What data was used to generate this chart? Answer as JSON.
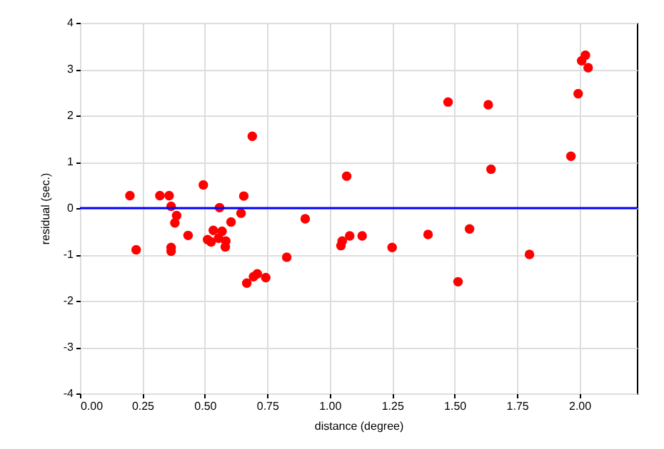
{
  "chart_data": {
    "type": "scatter",
    "xlabel": "distance (degree)",
    "ylabel": "residual (sec.)",
    "x": [
      0.2,
      0.225,
      0.32,
      0.357,
      0.365,
      0.365,
      0.365,
      0.387,
      0.38,
      0.433,
      0.494,
      0.559,
      0.534,
      0.569,
      0.511,
      0.525,
      0.555,
      0.584,
      0.582,
      0.605,
      0.645,
      0.656,
      0.69,
      0.668,
      0.695,
      0.71,
      0.744,
      0.828,
      0.902,
      1.068,
      1.045,
      1.05,
      1.08,
      1.13,
      1.25,
      1.394,
      1.474,
      1.56,
      1.514,
      1.635,
      1.646,
      1.8,
      1.966,
      1.995,
      2.009,
      2.024,
      2.035
    ],
    "series": [
      {
        "color": "#ff0000",
        "values": [
          0.27,
          -0.9,
          0.27,
          0.27,
          0.04,
          -0.85,
          -0.93,
          -0.16,
          -0.32,
          -0.59,
          0.5,
          0.01,
          -0.48,
          -0.5,
          -0.68,
          -0.73,
          -0.65,
          -0.71,
          -0.84,
          -0.3,
          -0.11,
          0.26,
          1.55,
          -1.62,
          -1.48,
          -1.42,
          -1.5,
          -1.06,
          -0.23,
          0.69,
          -0.81,
          -0.71,
          -0.6,
          -0.6,
          -0.85,
          -0.57,
          2.29,
          -0.45,
          -1.59,
          2.23,
          0.84,
          -1.0,
          1.12,
          2.47,
          3.18,
          3.3,
          3.03
        ]
      }
    ],
    "xlim": [
      0,
      2.23
    ],
    "xticks": [
      {
        "value": 0,
        "label": "0.00"
      },
      {
        "value": 0.25,
        "label": "0.25"
      },
      {
        "value": 0.5,
        "label": "0.50"
      },
      {
        "value": 0.75,
        "label": "0.75"
      },
      {
        "value": 1,
        "label": "1.00"
      },
      {
        "value": 1.25,
        "label": "1.25"
      },
      {
        "value": 1.5,
        "label": "1.50"
      },
      {
        "value": 1.75,
        "label": "1.75"
      },
      {
        "value": 2,
        "label": "2.00"
      }
    ],
    "ylim": [
      -4,
      4
    ],
    "yticks": [
      -4,
      -3,
      -2,
      -1,
      0,
      1,
      2,
      3,
      4
    ],
    "ref_lines": [
      {
        "axis": "y",
        "value": 0,
        "color": "#0000ff"
      }
    ],
    "grid": true,
    "marker": "circle"
  }
}
